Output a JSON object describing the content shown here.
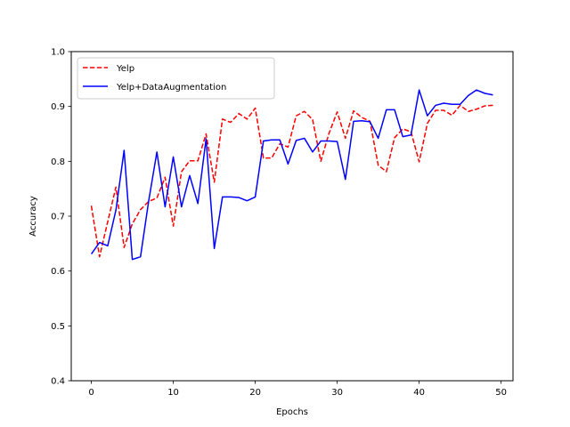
{
  "chart_data": {
    "type": "line",
    "title": "",
    "xlabel": "Epochs",
    "ylabel": "Accuracy",
    "xlim": [
      -2.45,
      51.45
    ],
    "ylim": [
      0.4,
      1.0
    ],
    "xticks": [
      0,
      10,
      20,
      30,
      40,
      50
    ],
    "yticks": [
      0.4,
      0.5,
      0.6,
      0.7,
      0.8,
      0.9,
      1.0
    ],
    "grid": false,
    "legend_position": "upper-left",
    "x": [
      0,
      1,
      2,
      3,
      4,
      5,
      6,
      7,
      8,
      9,
      10,
      11,
      12,
      13,
      14,
      15,
      16,
      17,
      18,
      19,
      20,
      21,
      22,
      23,
      24,
      25,
      26,
      27,
      28,
      29,
      30,
      31,
      32,
      33,
      34,
      35,
      36,
      37,
      38,
      39,
      40,
      41,
      42,
      43,
      44,
      45,
      46,
      47,
      48,
      49
    ],
    "series": [
      {
        "name": "Yelp",
        "color": "#ff0000",
        "dash": "dashed",
        "values": [
          0.719,
          0.626,
          0.69,
          0.753,
          0.643,
          0.686,
          0.712,
          0.727,
          0.733,
          0.771,
          0.682,
          0.781,
          0.801,
          0.801,
          0.85,
          0.762,
          0.877,
          0.871,
          0.887,
          0.877,
          0.897,
          0.806,
          0.806,
          0.832,
          0.826,
          0.883,
          0.891,
          0.876,
          0.8,
          0.851,
          0.89,
          0.842,
          0.892,
          0.88,
          0.873,
          0.793,
          0.781,
          0.843,
          0.859,
          0.854,
          0.799,
          0.869,
          0.893,
          0.893,
          0.884,
          0.902,
          0.891,
          0.895,
          0.901,
          0.902
        ]
      },
      {
        "name": "Yelp+DataAugmentation",
        "color": "#0000ff",
        "dash": "solid",
        "values": [
          0.631,
          0.652,
          0.646,
          0.711,
          0.82,
          0.621,
          0.626,
          0.728,
          0.817,
          0.717,
          0.808,
          0.717,
          0.774,
          0.723,
          0.841,
          0.641,
          0.735,
          0.735,
          0.734,
          0.728,
          0.735,
          0.837,
          0.839,
          0.839,
          0.795,
          0.838,
          0.842,
          0.817,
          0.837,
          0.837,
          0.836,
          0.767,
          0.873,
          0.874,
          0.872,
          0.842,
          0.894,
          0.894,
          0.845,
          0.848,
          0.93,
          0.883,
          0.902,
          0.906,
          0.904,
          0.904,
          0.92,
          0.93,
          0.924,
          0.921
        ]
      }
    ]
  }
}
